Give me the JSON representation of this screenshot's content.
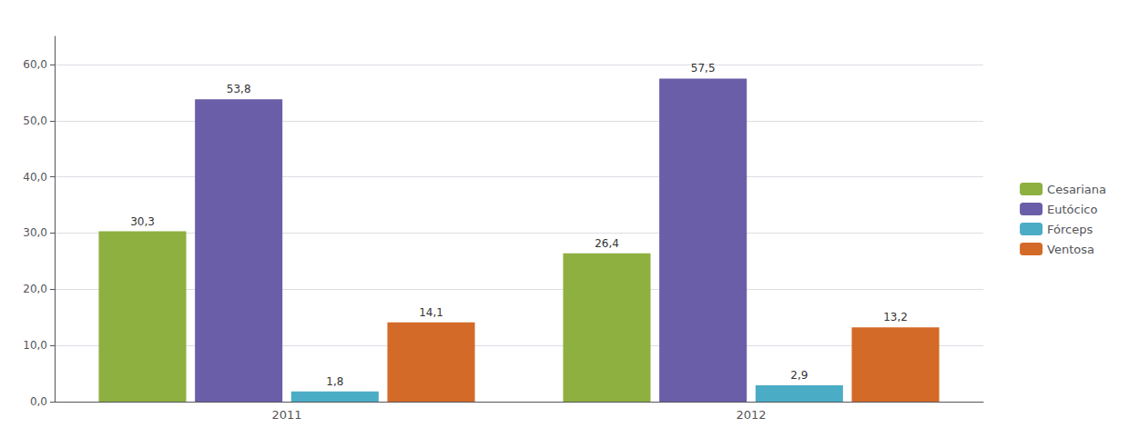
{
  "chart_data": {
    "type": "bar",
    "categories": [
      "2011",
      "2012"
    ],
    "series": [
      {
        "name": "Cesariana",
        "color": "#8DB040",
        "values": [
          30.3,
          26.4
        ],
        "value_labels": [
          "30,3",
          "26,4"
        ]
      },
      {
        "name": "Eutócico",
        "color": "#6B5EA8",
        "values": [
          53.8,
          57.5
        ],
        "value_labels": [
          "53,8",
          "57,5"
        ]
      },
      {
        "name": "Fórceps",
        "color": "#4BACC6",
        "values": [
          1.8,
          2.9
        ],
        "value_labels": [
          "1,8",
          "2,9"
        ]
      },
      {
        "name": "Ventosa",
        "color": "#D46A28",
        "values": [
          14.1,
          13.2
        ],
        "value_labels": [
          "14,1",
          "13,2"
        ]
      }
    ],
    "ylim": [
      0,
      65
    ],
    "yticks": [
      {
        "value": 0,
        "label": "0,0"
      },
      {
        "value": 10,
        "label": "10,0"
      },
      {
        "value": 20,
        "label": "20,0"
      },
      {
        "value": 30,
        "label": "30,0"
      },
      {
        "value": 40,
        "label": "40,0"
      },
      {
        "value": 50,
        "label": "50,0"
      },
      {
        "value": 60,
        "label": "60,0"
      }
    ],
    "grid": true,
    "legend": "right",
    "data_labels": true
  }
}
